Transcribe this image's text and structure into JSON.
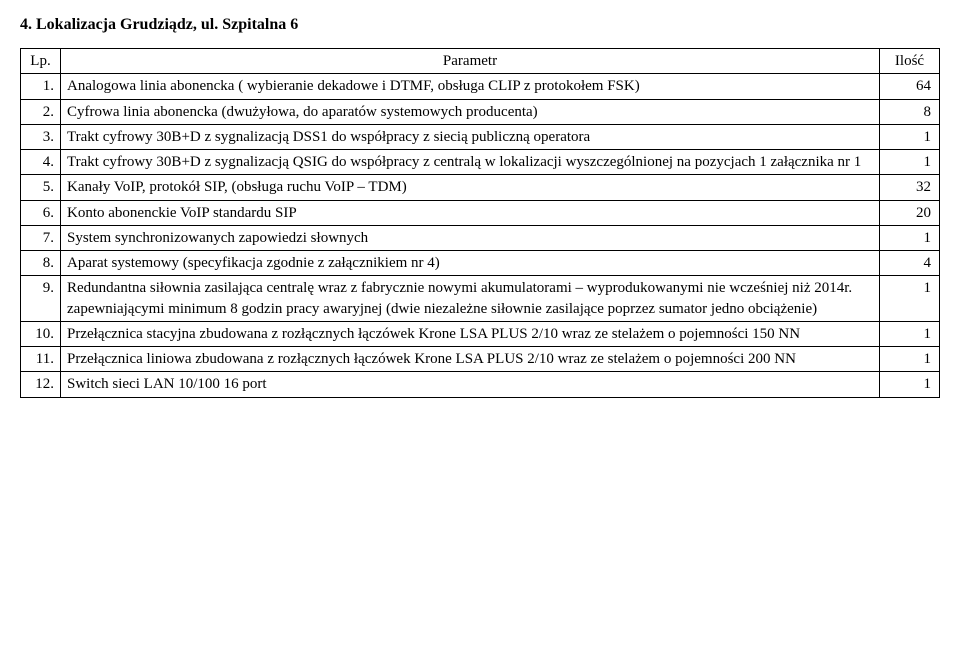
{
  "section_title": "4. Lokalizacja Grudziądz, ul. Szpitalna 6",
  "table": {
    "columns": [
      "Lp.",
      "Parametr",
      "Ilość"
    ],
    "rows": [
      {
        "lp": "1.",
        "param": "Analogowa linia abonencka ( wybieranie dekadowe i DTMF, obsługa CLIP z protokołem FSK)",
        "qty": "64"
      },
      {
        "lp": "2.",
        "param": "Cyfrowa linia abonencka (dwużyłowa, do aparatów systemowych producenta)",
        "qty": "8"
      },
      {
        "lp": "3.",
        "param": "Trakt cyfrowy 30B+D z sygnalizacją DSS1 do współpracy z siecią publiczną operatora",
        "qty": "1"
      },
      {
        "lp": "4.",
        "param": "Trakt cyfrowy 30B+D z sygnalizacją QSIG do współpracy z centralą w lokalizacji wyszczególnionej na pozycjach 1 załącznika nr 1",
        "qty": "1"
      },
      {
        "lp": "5.",
        "param": "Kanały VoIP, protokół SIP, (obsługa ruchu VoIP – TDM)",
        "qty": "32"
      },
      {
        "lp": "6.",
        "param": "Konto abonenckie VoIP standardu SIP",
        "qty": "20"
      },
      {
        "lp": "7.",
        "param": "System synchronizowanych zapowiedzi słownych",
        "qty": "1"
      },
      {
        "lp": "8.",
        "param": "Aparat systemowy (specyfikacja zgodnie z załącznikiem nr 4)",
        "qty": "4"
      },
      {
        "lp": "9.",
        "param": "Redundantna siłownia zasilająca centralę wraz z fabrycznie nowymi akumulatorami – wyprodukowanymi nie wcześniej niż 2014r. zapewniającymi minimum 8 godzin pracy awaryjnej (dwie niezależne siłownie zasilające poprzez sumator jedno obciążenie)",
        "qty": "1"
      },
      {
        "lp": "10.",
        "param": "Przełącznica stacyjna zbudowana z rozłącznych łączówek Krone LSA PLUS 2/10 wraz ze stelażem o pojemności 150 NN",
        "qty": "1"
      },
      {
        "lp": "11.",
        "param": "Przełącznica liniowa zbudowana z rozłącznych łączówek Krone LSA PLUS 2/10 wraz ze stelażem o pojemności 200 NN",
        "qty": "1"
      },
      {
        "lp": "12.",
        "param": "Switch sieci LAN 10/100 16 port",
        "qty": "1"
      }
    ]
  }
}
